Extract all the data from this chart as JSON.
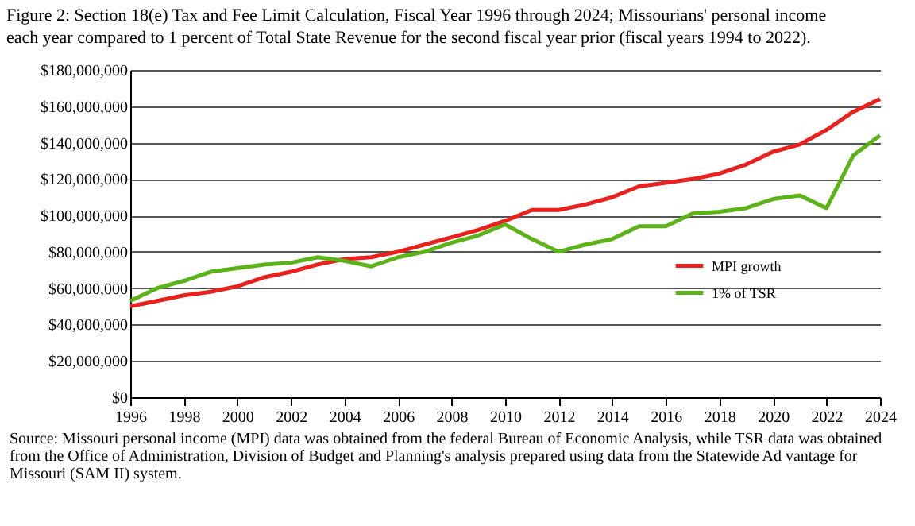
{
  "chart_data": {
    "type": "line",
    "title": "Figure 2: Section 18(e) Tax and Fee Limit Calculation, Fiscal Year 1996 through 2024; Missourians' personal income\neach year compared to 1 percent of Total State Revenue for the second fiscal year prior (fiscal years 1994 to 2022).",
    "x": [
      1996,
      1997,
      1998,
      1999,
      2000,
      2001,
      2002,
      2003,
      2004,
      2005,
      2006,
      2007,
      2008,
      2009,
      2010,
      2011,
      2012,
      2013,
      2014,
      2015,
      2016,
      2017,
      2018,
      2019,
      2020,
      2021,
      2022,
      2023,
      2024
    ],
    "series": [
      {
        "name": "MPI growth",
        "color": "#e8211c",
        "values": [
          50000000,
          53000000,
          56000000,
          58000000,
          61000000,
          66000000,
          69000000,
          73000000,
          76000000,
          77000000,
          80000000,
          84000000,
          88000000,
          92000000,
          97000000,
          103000000,
          103000000,
          106000000,
          110000000,
          116000000,
          118000000,
          120000000,
          123000000,
          128000000,
          135000000,
          139000000,
          147000000,
          157000000,
          164000000
        ]
      },
      {
        "name": "1% of TSR",
        "color": "#5bb318",
        "values": [
          53000000,
          60000000,
          64000000,
          69000000,
          71000000,
          73000000,
          74000000,
          77000000,
          75000000,
          72000000,
          77000000,
          80000000,
          85000000,
          89000000,
          95000000,
          87000000,
          80000000,
          84000000,
          87000000,
          94000000,
          94000000,
          101000000,
          102000000,
          104000000,
          109000000,
          111000000,
          104000000,
          133000000,
          144000000
        ]
      }
    ],
    "xlim": [
      1996,
      2024
    ],
    "xticks": [
      1996,
      1998,
      2000,
      2002,
      2004,
      2006,
      2008,
      2010,
      2012,
      2014,
      2016,
      2018,
      2020,
      2022,
      2024
    ],
    "ylim": [
      0,
      180000000
    ],
    "yticks": [
      {
        "value": 0,
        "label": "$0"
      },
      {
        "value": 20000000,
        "label": "$20,000,000"
      },
      {
        "value": 40000000,
        "label": "$40,000,000"
      },
      {
        "value": 60000000,
        "label": "$60,000,000"
      },
      {
        "value": 80000000,
        "label": "$80,000,000"
      },
      {
        "value": 100000000,
        "label": "$100,000,000"
      },
      {
        "value": 120000000,
        "label": "$120,000,000"
      },
      {
        "value": 140000000,
        "label": "$140,000,000"
      },
      {
        "value": 160000000,
        "label": "$160,000,000"
      },
      {
        "value": 180000000,
        "label": "$180,000,000"
      }
    ],
    "grid": "y",
    "legend": "right",
    "annotations": [
      "Source: Missouri personal income (MPI) data was obtained from the federal Bureau of Economic Analysis, while TSR data was obtained from the Office of Administration, Division of Budget and Planning's analysis prepared using data from the Statewide Ad vantage for Missouri (SAM II) system."
    ]
  }
}
